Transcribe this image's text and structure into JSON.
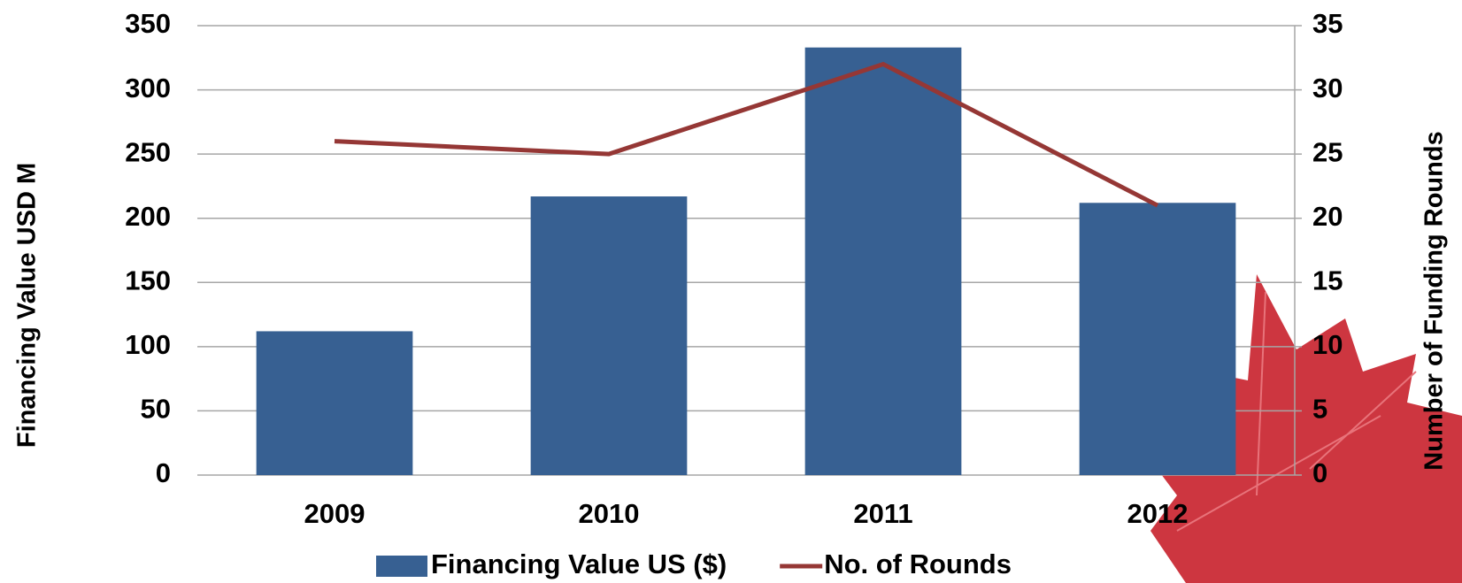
{
  "chart_data": {
    "type": "bar_line",
    "categories": [
      "2009",
      "2010",
      "2011",
      "2012"
    ],
    "series": [
      {
        "name": "Financing Value US ($)",
        "type": "bar",
        "color": "#376092",
        "values": [
          112,
          217,
          333,
          212
        ]
      },
      {
        "name": "No. of Rounds",
        "type": "line",
        "axis": "y2",
        "color": "#953735",
        "values": [
          26,
          25,
          32,
          21
        ]
      }
    ],
    "ylabel": "Financing Value USD M",
    "y2label": "Number of Funding Rounds",
    "ylim": [
      0,
      350
    ],
    "yticks": [
      0,
      50,
      100,
      150,
      200,
      250,
      300,
      350
    ],
    "y2lim": [
      0,
      35
    ],
    "y2ticks": [
      0,
      5,
      10,
      15,
      20,
      25,
      30,
      35
    ],
    "grid": true
  }
}
